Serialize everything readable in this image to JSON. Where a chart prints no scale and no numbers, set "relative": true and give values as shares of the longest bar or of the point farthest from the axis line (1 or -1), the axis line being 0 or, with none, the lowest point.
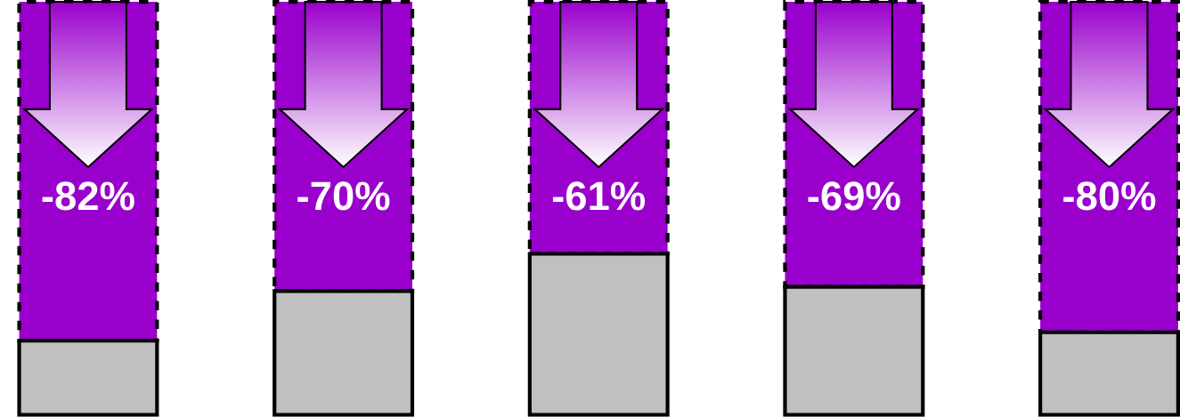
{
  "chart_data": {
    "type": "bar",
    "stacked": true,
    "relative": true,
    "categories": [
      null,
      null,
      null,
      null,
      null
    ],
    "series": [
      {
        "color": "#c0c0c0",
        "values": [
          0.18,
          0.3,
          0.39,
          0.31,
          0.2
        ]
      },
      {
        "color": "#9900cc",
        "values": [
          0.82,
          0.7,
          0.61,
          0.69,
          0.8
        ]
      }
    ],
    "annotations": [
      "-82%",
      "-70%",
      "-61%",
      "-69%",
      "-80%"
    ]
  }
}
